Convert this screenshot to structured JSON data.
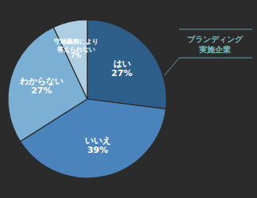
{
  "chart_data": {
    "type": "pie",
    "categories": [
      "はい",
      "いいえ",
      "わからない",
      "守秘義務により\n答えられない"
    ],
    "values": [
      27,
      39,
      27,
      7
    ],
    "value_labels": [
      "27%",
      "39%",
      "27%",
      "7%"
    ],
    "colors": [
      "#2e5f8a",
      "#4b84bc",
      "#7bafd4",
      "#aecfe3"
    ],
    "data_labels": true,
    "annotation": {
      "text": "ブランディング\n実施企業",
      "color": "#7ab8bf"
    }
  }
}
